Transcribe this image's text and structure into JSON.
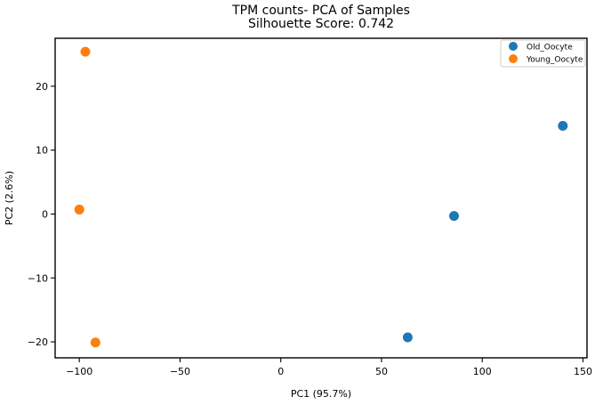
{
  "chart_data": {
    "type": "scatter",
    "title": "TPM counts- PCA of Samples",
    "subtitle": "Silhouette Score: 0.742",
    "xlabel": "PC1 (95.7%)",
    "ylabel": "PC2 (2.6%)",
    "xlim": [
      -112,
      152
    ],
    "ylim": [
      -22.5,
      27.5
    ],
    "xticks": [
      -100,
      -50,
      0,
      50,
      100,
      150
    ],
    "yticks": [
      -20,
      -10,
      0,
      10,
      20
    ],
    "xtick_labels": [
      "−100",
      "−50",
      "0",
      "50",
      "100",
      "150"
    ],
    "ytick_labels": [
      "−20",
      "−10",
      "0",
      "10",
      "20"
    ],
    "grid": false,
    "legend_position": "top-right",
    "series": [
      {
        "name": "Old_Oocyte",
        "color": "#1f77b4",
        "points": [
          {
            "x": 140,
            "y": 13.8
          },
          {
            "x": 86,
            "y": -0.3
          },
          {
            "x": 63,
            "y": -19.3
          }
        ]
      },
      {
        "name": "Young_Oocyte",
        "color": "#ff7f0e",
        "points": [
          {
            "x": -97,
            "y": 25.4
          },
          {
            "x": -100,
            "y": 0.7
          },
          {
            "x": -92,
            "y": -20.1
          }
        ]
      }
    ]
  }
}
